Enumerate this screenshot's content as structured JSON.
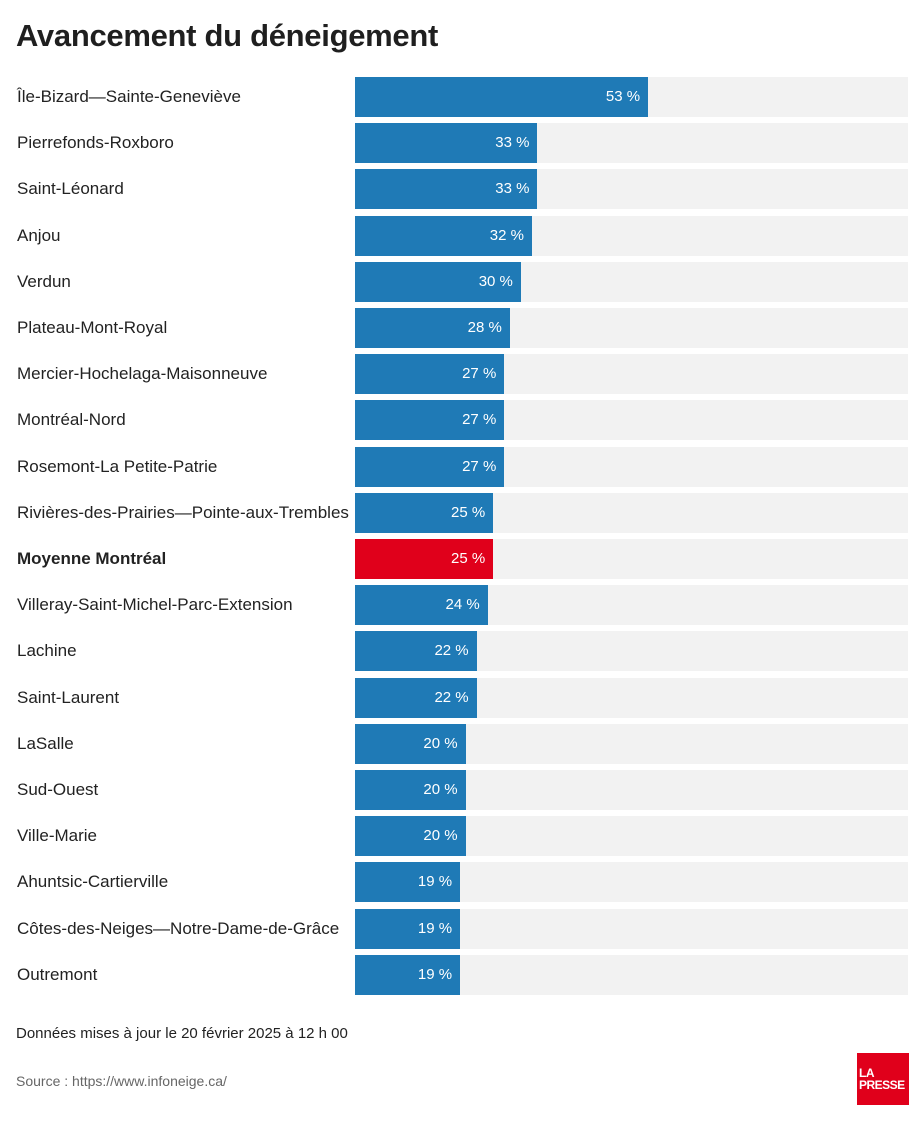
{
  "chart_data": {
    "type": "bar",
    "orientation": "horizontal",
    "title": "Avancement du déneigement",
    "categories": [
      "Île-Bizard—Sainte-Geneviève",
      "Pierrefonds-Roxboro",
      "Saint-Léonard",
      "Anjou",
      "Verdun",
      "Plateau-Mont-Royal",
      "Mercier-Hochelaga-Maisonneuve",
      "Montréal-Nord",
      "Rosemont-La Petite-Patrie",
      "Rivières-des-Prairies—Pointe-aux-Trembles",
      "Moyenne Montréal",
      "Villeray-Saint-Michel-Parc-Extension",
      "Lachine",
      "Saint-Laurent",
      "LaSalle",
      "Sud-Ouest",
      "Ville-Marie",
      "Ahuntsic-Cartierville",
      "Côtes-des-Neiges—Notre-Dame-de-Grâce",
      "Outremont"
    ],
    "values": [
      53,
      33,
      33,
      32,
      30,
      28,
      27,
      27,
      27,
      25,
      25,
      24,
      22,
      22,
      20,
      20,
      20,
      19,
      19,
      19
    ],
    "value_labels": [
      "53 %",
      "33 %",
      "33 %",
      "32 %",
      "30 %",
      "28 %",
      "27 %",
      "27 %",
      "27 %",
      "25 %",
      "25 %",
      "24 %",
      "22 %",
      "22 %",
      "20 %",
      "20 %",
      "20 %",
      "19 %",
      "19 %",
      "19 %"
    ],
    "highlight_index": 10,
    "xlim": [
      0,
      100
    ],
    "colors": {
      "bar": "#1f7ab6",
      "highlight": "#e0001b",
      "track": "#f2f2f2"
    }
  },
  "footer": {
    "note": "Données mises à jour le 20 février 2025 à 12 h 00",
    "source": "Source : https://www.infoneige.ca/"
  },
  "logo": {
    "line1": "LA",
    "line2": "PRESSE"
  }
}
